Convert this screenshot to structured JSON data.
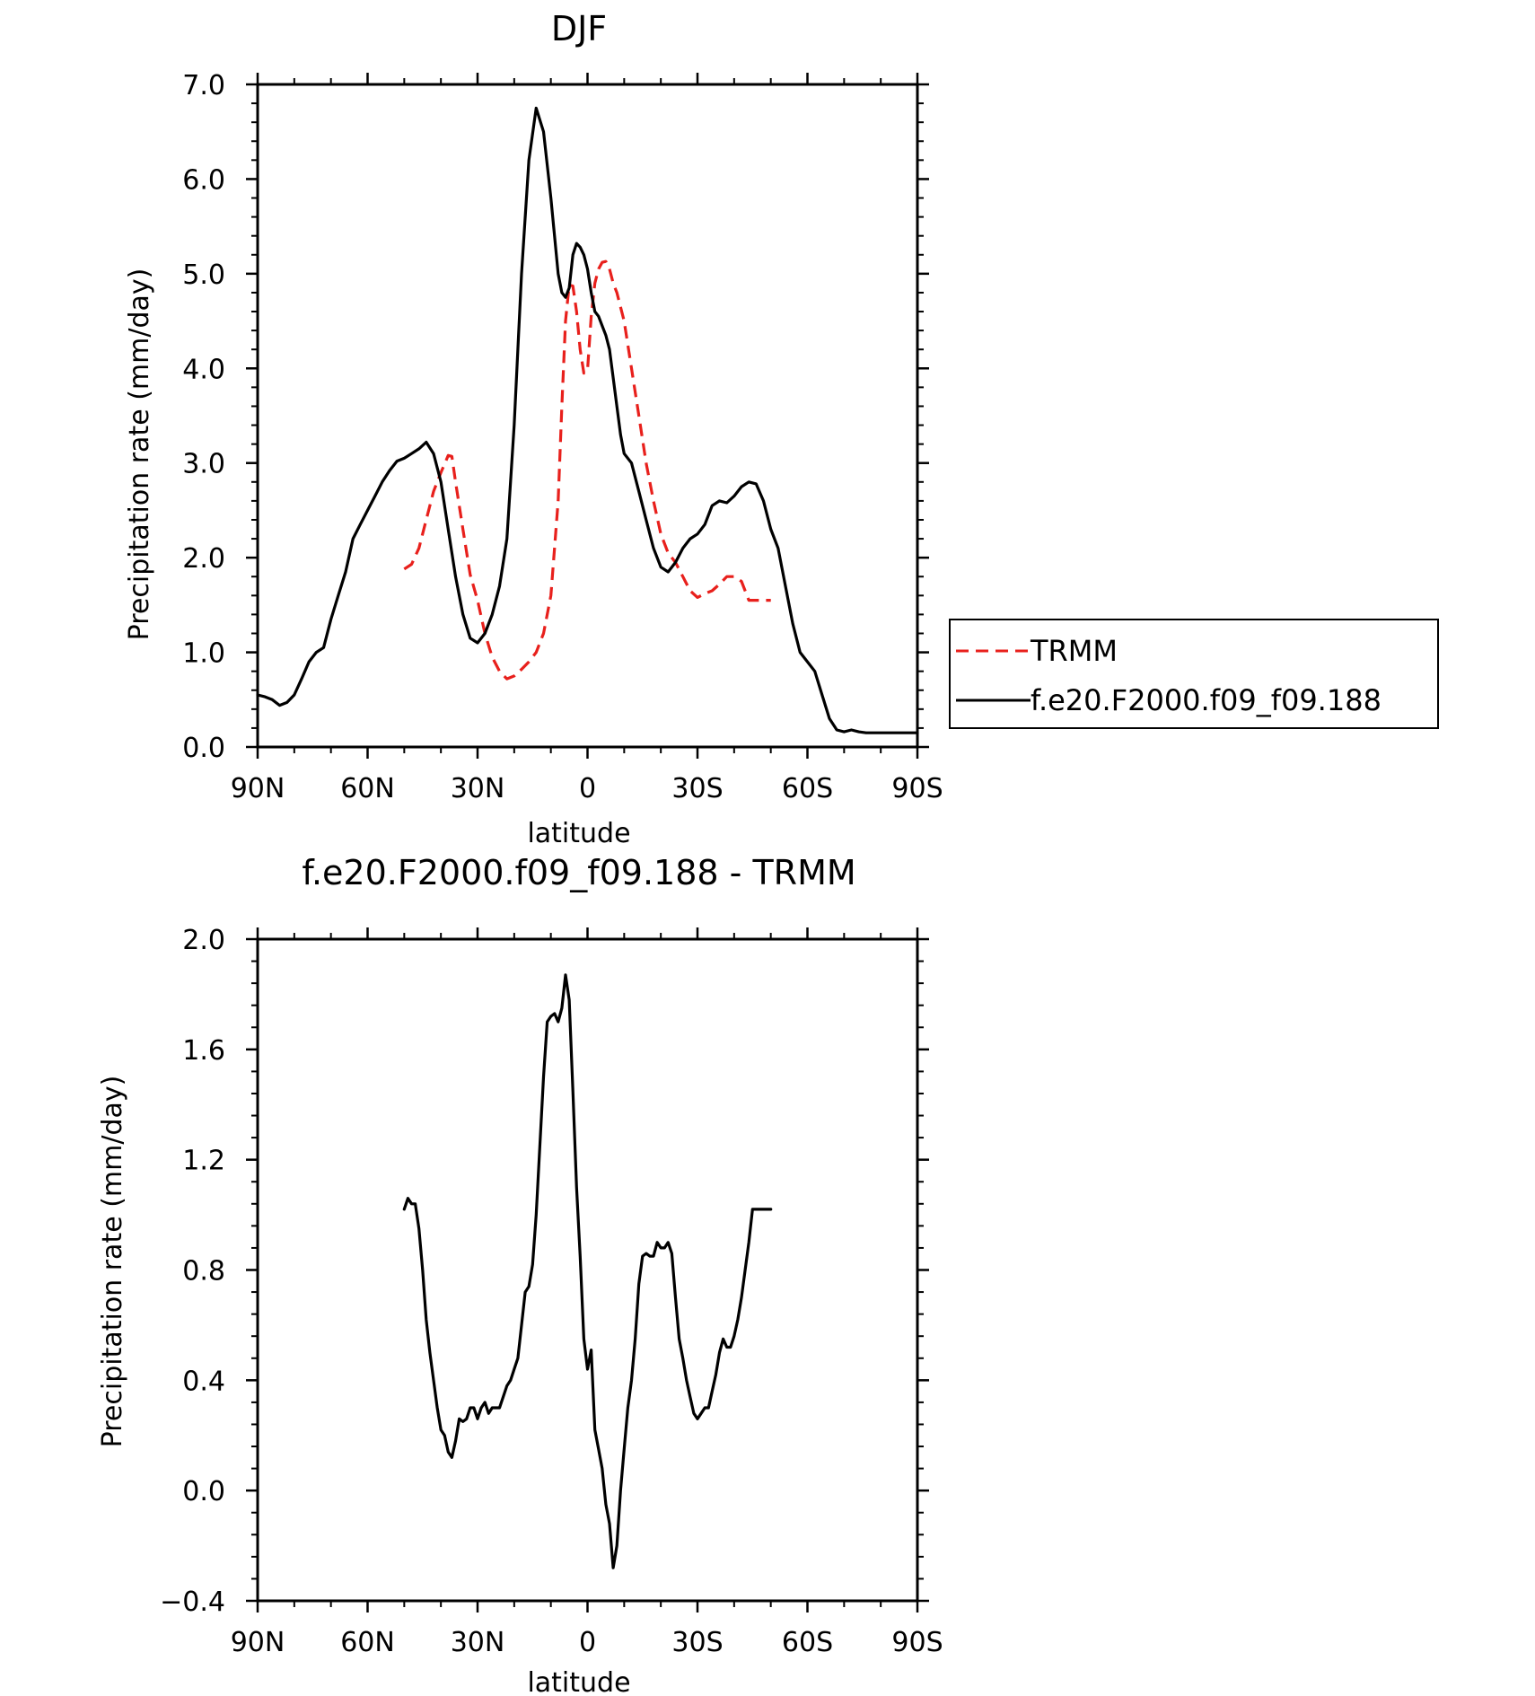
{
  "colors": {
    "model": "#000000",
    "obs": "#e8201c",
    "diff": "#000000"
  },
  "chart_data": [
    {
      "type": "line",
      "title": "DJF",
      "xlabel": "latitude",
      "ylabel": "Precipitation rate (mm/day)",
      "xlim": [
        90,
        -90
      ],
      "ylim": [
        0,
        7
      ],
      "x_ticks": [
        {
          "value": 90,
          "label": "90N"
        },
        {
          "value": 60,
          "label": "60N"
        },
        {
          "value": 30,
          "label": "30N"
        },
        {
          "value": 0,
          "label": "0"
        },
        {
          "value": -30,
          "label": "30S"
        },
        {
          "value": -60,
          "label": "60S"
        },
        {
          "value": -90,
          "label": "90S"
        }
      ],
      "y_ticks": [
        {
          "value": 0,
          "label": "0.0"
        },
        {
          "value": 1,
          "label": "1.0"
        },
        {
          "value": 2,
          "label": "2.0"
        },
        {
          "value": 3,
          "label": "3.0"
        },
        {
          "value": 4,
          "label": "4.0"
        },
        {
          "value": 5,
          "label": "5.0"
        },
        {
          "value": 6,
          "label": "6.0"
        },
        {
          "value": 7,
          "label": "7.0"
        }
      ],
      "legend_position": "right",
      "series": [
        {
          "name": "TRMM",
          "style": "dashed",
          "color": "#e8201c",
          "x": [
            50,
            48,
            46,
            44,
            42,
            40,
            38,
            37,
            36,
            34,
            32,
            30,
            28,
            26,
            24,
            22,
            20,
            18,
            16,
            14,
            12,
            10,
            8,
            7,
            6,
            5,
            4,
            3,
            2,
            1,
            0,
            -1,
            -2,
            -3,
            -4,
            -5,
            -6,
            -7,
            -8,
            -10,
            -12,
            -14,
            -16,
            -18,
            -20,
            -22,
            -24,
            -26,
            -28,
            -30,
            -32,
            -34,
            -36,
            -38,
            -40,
            -42,
            -44,
            -46,
            -48,
            -50
          ],
          "y": [
            1.88,
            1.93,
            2.1,
            2.4,
            2.7,
            2.9,
            3.08,
            3.07,
            2.8,
            2.3,
            1.82,
            1.55,
            1.2,
            0.95,
            0.8,
            0.72,
            0.75,
            0.82,
            0.9,
            1.0,
            1.2,
            1.6,
            2.6,
            3.6,
            4.5,
            4.88,
            4.87,
            4.6,
            4.2,
            3.95,
            3.98,
            4.55,
            4.9,
            5.05,
            5.12,
            5.13,
            5.05,
            4.9,
            4.8,
            4.5,
            4.0,
            3.5,
            3.0,
            2.6,
            2.25,
            2.05,
            1.95,
            1.8,
            1.65,
            1.58,
            1.62,
            1.65,
            1.72,
            1.8,
            1.8,
            1.75,
            1.55,
            1.55,
            1.55,
            1.55
          ]
        },
        {
          "name": "f.e20.F2000.f09_f09.188",
          "style": "solid",
          "color": "#000000",
          "x": [
            90,
            88,
            86,
            84,
            82,
            80,
            78,
            76,
            74,
            72,
            70,
            68,
            66,
            64,
            62,
            60,
            58,
            56,
            54,
            52,
            50,
            48,
            46,
            44,
            42,
            40,
            38,
            36,
            34,
            32,
            30,
            28,
            26,
            24,
            22,
            20,
            18,
            16,
            14,
            12,
            10,
            8,
            7,
            6,
            5,
            4,
            3,
            2,
            1,
            0,
            -1,
            -2,
            -3,
            -4,
            -5,
            -6,
            -7,
            -8,
            -9,
            -10,
            -12,
            -14,
            -16,
            -18,
            -20,
            -22,
            -24,
            -26,
            -28,
            -30,
            -32,
            -34,
            -36,
            -38,
            -40,
            -42,
            -44,
            -46,
            -48,
            -50,
            -52,
            -54,
            -56,
            -58,
            -60,
            -62,
            -64,
            -66,
            -68,
            -70,
            -72,
            -74,
            -76,
            -78,
            -80,
            -82,
            -84,
            -86,
            -88,
            -90
          ],
          "y": [
            0.55,
            0.53,
            0.5,
            0.44,
            0.47,
            0.55,
            0.72,
            0.9,
            1.0,
            1.05,
            1.35,
            1.6,
            1.85,
            2.2,
            2.35,
            2.5,
            2.65,
            2.8,
            2.92,
            3.02,
            3.05,
            3.1,
            3.15,
            3.22,
            3.1,
            2.8,
            2.3,
            1.8,
            1.4,
            1.15,
            1.1,
            1.2,
            1.4,
            1.7,
            2.2,
            3.4,
            5.0,
            6.2,
            6.75,
            6.5,
            5.8,
            5.0,
            4.8,
            4.75,
            4.85,
            5.2,
            5.32,
            5.28,
            5.2,
            5.05,
            4.8,
            4.6,
            4.55,
            4.45,
            4.35,
            4.2,
            3.9,
            3.6,
            3.3,
            3.1,
            3.0,
            2.7,
            2.4,
            2.1,
            1.9,
            1.85,
            1.95,
            2.1,
            2.2,
            2.25,
            2.35,
            2.55,
            2.6,
            2.58,
            2.65,
            2.75,
            2.8,
            2.78,
            2.6,
            2.3,
            2.1,
            1.7,
            1.3,
            1.0,
            0.9,
            0.8,
            0.55,
            0.3,
            0.18,
            0.16,
            0.18,
            0.16,
            0.15,
            0.15,
            0.15,
            0.15,
            0.15,
            0.15,
            0.15,
            0.15
          ]
        }
      ]
    },
    {
      "type": "line",
      "title": "f.e20.F2000.f09_f09.188 - TRMM",
      "xlabel": "latitude",
      "ylabel": "Precipitation rate (mm/day)",
      "xlim": [
        90,
        -90
      ],
      "ylim": [
        -0.4,
        2.0
      ],
      "x_ticks": [
        {
          "value": 90,
          "label": "90N"
        },
        {
          "value": 60,
          "label": "60N"
        },
        {
          "value": 30,
          "label": "30N"
        },
        {
          "value": 0,
          "label": "0"
        },
        {
          "value": -30,
          "label": "30S"
        },
        {
          "value": -60,
          "label": "60S"
        },
        {
          "value": -90,
          "label": "90S"
        }
      ],
      "y_ticks": [
        {
          "value": -0.4,
          "label": "-0.4"
        },
        {
          "value": 0,
          "label": "0.0"
        },
        {
          "value": 0.4,
          "label": "0.4"
        },
        {
          "value": 0.8,
          "label": "0.8"
        },
        {
          "value": 1.2,
          "label": "1.2"
        },
        {
          "value": 1.6,
          "label": "1.6"
        },
        {
          "value": 2.0,
          "label": "2.0"
        }
      ],
      "series": [
        {
          "style": "solid",
          "color": "#000000",
          "x": [
            50,
            49,
            48,
            47,
            46,
            45,
            44,
            43,
            42,
            41,
            40,
            39,
            38,
            37,
            36,
            35,
            34,
            33,
            32,
            31,
            30,
            29,
            28,
            27,
            26,
            25,
            24,
            23,
            22,
            21,
            20,
            19,
            18,
            17,
            16,
            15,
            14,
            13,
            12,
            11,
            10,
            9,
            8,
            7,
            6,
            5,
            4,
            3,
            2,
            1,
            0,
            -1,
            -2,
            -3,
            -4,
            -5,
            -6,
            -7,
            -8,
            -9,
            -10,
            -11,
            -12,
            -13,
            -14,
            -15,
            -16,
            -17,
            -18,
            -19,
            -20,
            -21,
            -22,
            -23,
            -24,
            -25,
            -26,
            -27,
            -28,
            -29,
            -30,
            -31,
            -32,
            -33,
            -34,
            -35,
            -36,
            -37,
            -38,
            -39,
            -40,
            -41,
            -42,
            -43,
            -44,
            -45,
            -46,
            -47,
            -48,
            -49,
            -50
          ],
          "y": [
            1.02,
            1.06,
            1.04,
            1.04,
            0.95,
            0.8,
            0.62,
            0.5,
            0.4,
            0.3,
            0.22,
            0.2,
            0.14,
            0.12,
            0.18,
            0.26,
            0.25,
            0.26,
            0.3,
            0.3,
            0.26,
            0.3,
            0.32,
            0.28,
            0.3,
            0.3,
            0.3,
            0.34,
            0.38,
            0.4,
            0.44,
            0.48,
            0.6,
            0.72,
            0.74,
            0.82,
            1.0,
            1.25,
            1.5,
            1.7,
            1.72,
            1.73,
            1.7,
            1.75,
            1.87,
            1.78,
            1.45,
            1.1,
            0.85,
            0.55,
            0.44,
            0.51,
            0.22,
            0.15,
            0.08,
            -0.05,
            -0.12,
            -0.28,
            -0.2,
            0.0,
            0.15,
            0.3,
            0.4,
            0.55,
            0.75,
            0.85,
            0.86,
            0.85,
            0.85,
            0.9,
            0.88,
            0.88,
            0.9,
            0.86,
            0.7,
            0.55,
            0.48,
            0.4,
            0.34,
            0.28,
            0.26,
            0.28,
            0.3,
            0.3,
            0.36,
            0.42,
            0.5,
            0.55,
            0.52,
            0.52,
            0.56,
            0.62,
            0.7,
            0.8,
            0.9,
            1.02,
            1.02,
            1.02,
            1.02,
            1.02,
            1.02
          ]
        }
      ]
    }
  ]
}
